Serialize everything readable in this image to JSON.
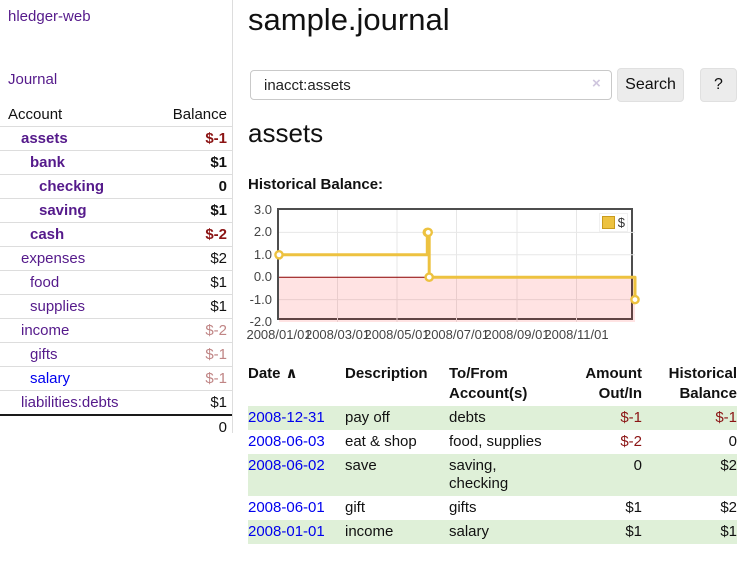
{
  "app": {
    "brand": "hledger-web",
    "nav_journal": "Journal"
  },
  "colors": {
    "accent_purple": "#551a8b",
    "link_blue": "#0000ee",
    "negative": "#8b1414",
    "negative_soft": "#c08585",
    "row_green": "#dff0d8",
    "series_yellow": "#edc240",
    "zero_line": "#8b0000"
  },
  "sidebar": {
    "headers": {
      "account": "Account",
      "balance": "Balance"
    },
    "accounts": [
      {
        "label": "assets",
        "level": 0,
        "bold": true,
        "link_color": "purple",
        "balance": "$-1",
        "balance_tone": "neg-strong"
      },
      {
        "label": "bank",
        "level": 1,
        "bold": true,
        "link_color": "purple",
        "balance": "$1",
        "balance_tone": "normal"
      },
      {
        "label": "checking",
        "level": 2,
        "bold": true,
        "link_color": "purple",
        "balance": "0",
        "balance_tone": "normal"
      },
      {
        "label": "saving",
        "level": 2,
        "bold": true,
        "link_color": "purple",
        "balance": "$1",
        "balance_tone": "normal"
      },
      {
        "label": "cash",
        "level": 1,
        "bold": true,
        "link_color": "purple",
        "balance": "$-2",
        "balance_tone": "neg-strong"
      },
      {
        "label": "expenses",
        "level": 0,
        "bold": false,
        "link_color": "purple",
        "balance": "$2",
        "balance_tone": "normal"
      },
      {
        "label": "food",
        "level": 1,
        "bold": false,
        "link_color": "purple",
        "balance": "$1",
        "balance_tone": "normal"
      },
      {
        "label": "supplies",
        "level": 1,
        "bold": false,
        "link_color": "purple",
        "balance": "$1",
        "balance_tone": "normal"
      },
      {
        "label": "income",
        "level": 0,
        "bold": false,
        "link_color": "purple",
        "balance": "$-2",
        "balance_tone": "neg-soft"
      },
      {
        "label": "gifts",
        "level": 1,
        "bold": false,
        "link_color": "purple",
        "balance": "$-1",
        "balance_tone": "neg-soft"
      },
      {
        "label": "salary",
        "level": 1,
        "bold": false,
        "link_color": "blue",
        "balance": "$-1",
        "balance_tone": "neg-soft"
      },
      {
        "label": "liabilities:debts",
        "level": 0,
        "bold": false,
        "link_color": "purple",
        "balance": "$1",
        "balance_tone": "normal"
      }
    ],
    "total": "0"
  },
  "header": {
    "title": "sample.journal"
  },
  "search": {
    "value": "inacct:assets",
    "clear_icon": "×",
    "button_label": "Search",
    "help_label": "?"
  },
  "account_page": {
    "heading": "assets",
    "chart_title": "Historical Balance:"
  },
  "chart_data": {
    "type": "line",
    "step": true,
    "title": "Historical Balance",
    "x_start": "2008-01-01",
    "x_end": "2008-12-31",
    "ylim": [
      -2,
      3
    ],
    "yticks": [
      {
        "v": 3,
        "label": "3.0"
      },
      {
        "v": 2,
        "label": "2.0"
      },
      {
        "v": 1,
        "label": "1.0"
      },
      {
        "v": 0,
        "label": "0.0"
      },
      {
        "v": -1,
        "label": "-1.0"
      },
      {
        "v": -2,
        "label": "-2.0"
      }
    ],
    "ygrid": [
      2,
      1,
      -1
    ],
    "xticks": [
      {
        "date": "2008-01-01",
        "label": "2008/01/01"
      },
      {
        "date": "2008-03-01",
        "label": "2008/03/01"
      },
      {
        "date": "2008-05-01",
        "label": "2008/05/01"
      },
      {
        "date": "2008-07-01",
        "label": "2008/07/01"
      },
      {
        "date": "2008-09-01",
        "label": "2008/09/01"
      },
      {
        "date": "2008-11-01",
        "label": "2008/11/01"
      }
    ],
    "series": [
      {
        "name": "$",
        "color": "#edc240",
        "points": [
          [
            "2008-01-01",
            1
          ],
          [
            "2008-06-01",
            2
          ],
          [
            "2008-06-02",
            2
          ],
          [
            "2008-06-03",
            0
          ],
          [
            "2008-12-31",
            -1
          ]
        ]
      }
    ],
    "legend_label": "$",
    "legend_position": "top-right",
    "negative_region_shaded": true,
    "zero_line_color": "#8b0000"
  },
  "register": {
    "headers": {
      "date": "Date",
      "sort_indicator": "∧",
      "description": "Description",
      "accounts": "To/From Account(s)",
      "amount": "Amount Out/In",
      "balance": "Historical Balance"
    },
    "rows": [
      {
        "date": "2008-12-31",
        "description": "pay off",
        "accounts": "debts",
        "amount": "$-1",
        "amount_tone": "neg",
        "balance": "$-1",
        "balance_tone": "neg",
        "shaded": true
      },
      {
        "date": "2008-06-03",
        "description": "eat & shop",
        "accounts": "food, supplies",
        "amount": "$-2",
        "amount_tone": "neg",
        "balance": "0",
        "balance_tone": "normal",
        "shaded": false
      },
      {
        "date": "2008-06-02",
        "description": "save",
        "accounts": "saving, checking",
        "amount": "0",
        "amount_tone": "normal",
        "balance": "$2",
        "balance_tone": "normal",
        "shaded": true
      },
      {
        "date": "2008-06-01",
        "description": "gift",
        "accounts": "gifts",
        "amount": "$1",
        "amount_tone": "normal",
        "balance": "$2",
        "balance_tone": "normal",
        "shaded": false
      },
      {
        "date": "2008-01-01",
        "description": "income",
        "accounts": "salary",
        "amount": "$1",
        "amount_tone": "normal",
        "balance": "$1",
        "balance_tone": "normal",
        "shaded": true
      }
    ]
  }
}
